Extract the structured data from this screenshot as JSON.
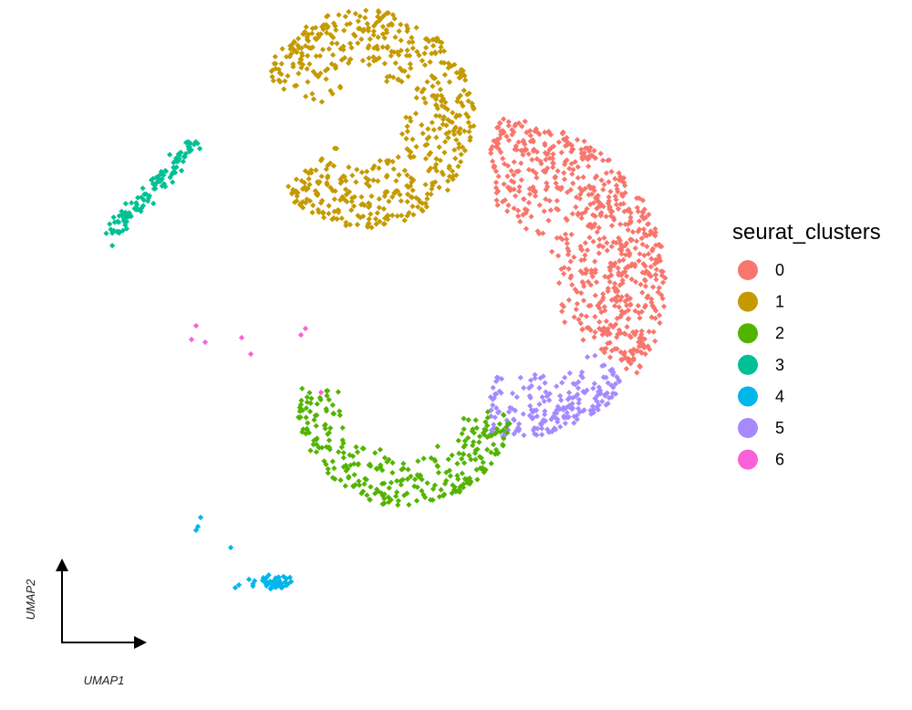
{
  "chart_data": {
    "type": "scatter",
    "title": "",
    "xlabel": "UMAP1",
    "ylabel": "UMAP2",
    "xlim": [
      -9,
      9
    ],
    "ylim": [
      -8,
      8
    ],
    "grid": false,
    "legend_position": "right",
    "legend": {
      "title": "seurat_clusters",
      "entries": [
        "0",
        "1",
        "2",
        "3",
        "4",
        "5",
        "6"
      ]
    },
    "clusters": [
      {
        "name": "0",
        "color": "#F8766D",
        "n": 700
      },
      {
        "name": "1",
        "color": "#C49A00",
        "n": 600
      },
      {
        "name": "2",
        "color": "#53B400",
        "n": 300
      },
      {
        "name": "3",
        "color": "#00C094",
        "n": 120
      },
      {
        "name": "4",
        "color": "#00B6EB",
        "n": 55
      },
      {
        "name": "5",
        "color": "#A58AFF",
        "n": 200
      },
      {
        "name": "6",
        "color": "#FB61D7",
        "n": 8
      }
    ]
  }
}
